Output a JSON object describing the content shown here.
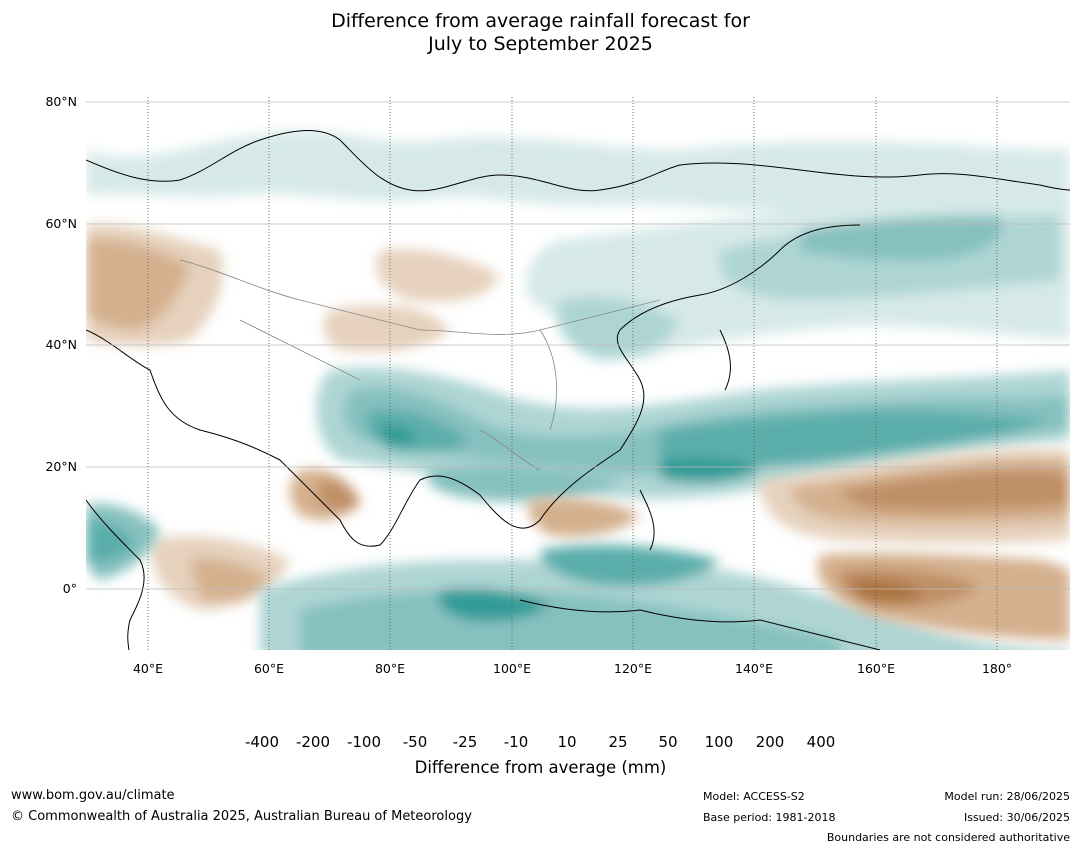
{
  "title": {
    "line1": "Difference from average rainfall forecast for",
    "line2": "July to September 2025"
  },
  "map": {
    "lat_labels": [
      "80°N",
      "60°N",
      "40°N",
      "20°N",
      "0°"
    ],
    "lon_labels": [
      "40°E",
      "60°E",
      "80°E",
      "100°E",
      "120°E",
      "140°E",
      "160°E",
      "180°"
    ],
    "extent": {
      "lon_min": 30,
      "lon_max": 190,
      "lat_min": -10,
      "lat_max": 80
    }
  },
  "legend": {
    "ticks": [
      "-400",
      "-200",
      "-100",
      "-50",
      "-25",
      "-10",
      "10",
      "25",
      "50",
      "100",
      "200",
      "400"
    ],
    "colors": [
      "#a36f35",
      "#aa7540",
      "#c09066",
      "#d4b08e",
      "#e6d1bd",
      "#f2ece5",
      "#ffffff",
      "#d6e9e8",
      "#aed5d4",
      "#86c1bf",
      "#5baeab",
      "#339b98",
      "#2a7f7c"
    ],
    "label": "Difference from average (mm)"
  },
  "footer": {
    "website": "www.bom.gov.au/climate",
    "copyright": "© Commonwealth of Australia 2025, Australian Bureau of Meteorology",
    "model": "Model: ACCESS-S2",
    "base_period": "Base period: 1981-2018",
    "model_run": "Model run: 28/06/2025",
    "issued": "Issued: 30/06/2025",
    "disclaimer": "Boundaries are not considered authoritative"
  }
}
